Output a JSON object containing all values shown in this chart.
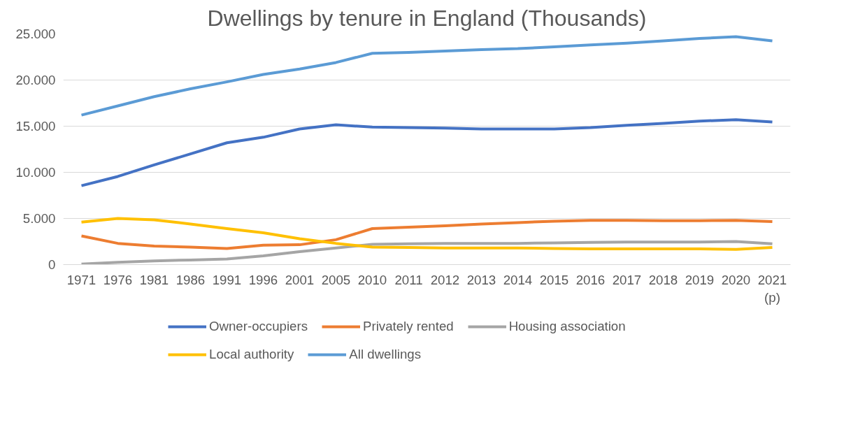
{
  "chart_data": {
    "type": "line",
    "title": "Dwellings by tenure in England (Thousands)",
    "categories": [
      "1971",
      "1976",
      "1981",
      "1986",
      "1991",
      "1996",
      "2001",
      "2005",
      "2010",
      "2011",
      "2012",
      "2013",
      "2014",
      "2015",
      "2016",
      "2017",
      "2018",
      "2019",
      "2020",
      "2021\n(p)"
    ],
    "series": [
      {
        "name": "Owner-occupiers",
        "color": "#4472c4",
        "values": [
          8550,
          9550,
          10800,
          12000,
          13200,
          13800,
          14700,
          15150,
          14900,
          14850,
          14800,
          14700,
          14700,
          14700,
          14850,
          15100,
          15300,
          15550,
          15700,
          15450
        ]
      },
      {
        "name": "Privately rented",
        "color": "#ed7d31",
        "values": [
          3100,
          2300,
          2000,
          1900,
          1750,
          2100,
          2150,
          2700,
          3900,
          4050,
          4200,
          4400,
          4550,
          4700,
          4800,
          4800,
          4750,
          4750,
          4800,
          4650
        ]
      },
      {
        "name": "Housing association",
        "color": "#a5a5a5",
        "values": [
          50,
          250,
          400,
          500,
          600,
          950,
          1400,
          1800,
          2200,
          2250,
          2300,
          2300,
          2300,
          2350,
          2400,
          2450,
          2450,
          2450,
          2500,
          2250
        ]
      },
      {
        "name": "Local authority",
        "color": "#ffc000",
        "values": [
          4600,
          5000,
          4850,
          4400,
          3900,
          3450,
          2800,
          2300,
          1900,
          1850,
          1800,
          1800,
          1800,
          1750,
          1700,
          1700,
          1700,
          1700,
          1650,
          1850
        ]
      },
      {
        "name": "All dwellings",
        "color": "#5b9bd5",
        "values": [
          16200,
          17200,
          18200,
          19050,
          19800,
          20600,
          21200,
          21900,
          22900,
          23000,
          23150,
          23300,
          23400,
          23600,
          23800,
          24000,
          24250,
          24500,
          24700,
          24250
        ]
      }
    ],
    "ylim": [
      0,
      25000
    ],
    "yticks": [
      0,
      {
        "value": 5000,
        "label": "5.000"
      },
      {
        "value": 10000,
        "label": "10.000"
      },
      {
        "value": 15000,
        "label": "15.000"
      },
      {
        "value": 20000,
        "label": "20.000"
      },
      {
        "value": 25000,
        "label": "25.000"
      }
    ],
    "grid": "y",
    "legend": "bottom",
    "marker": "none",
    "line_style": "solid"
  }
}
